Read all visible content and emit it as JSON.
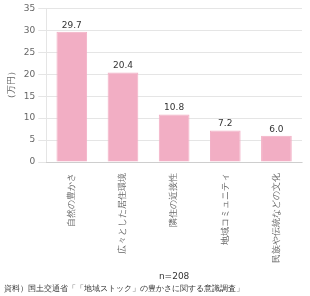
{
  "chart_data": {
    "type": "bar",
    "categories": [
      "自然の豊かさ",
      "広々とした居住環境",
      "隣住の近接性",
      "地域コミュニティ",
      "民族や伝統などの文化"
    ],
    "values": [
      29.7,
      20.4,
      10.8,
      7.2,
      6.0
    ],
    "value_labels": [
      "29.7",
      "20.4",
      "10.8",
      "7.2",
      "6.0"
    ],
    "data_labels": true,
    "color": "#f2aec4",
    "ylabel": "（万円）",
    "ylim": [
      0,
      35
    ],
    "yticks": [
      0,
      5,
      10,
      15,
      20,
      25,
      30,
      35
    ],
    "grid": true,
    "annotation": "n=208",
    "source": "資料）国土交通省「「地域ストック」の豊かさに関する意識調査」"
  }
}
